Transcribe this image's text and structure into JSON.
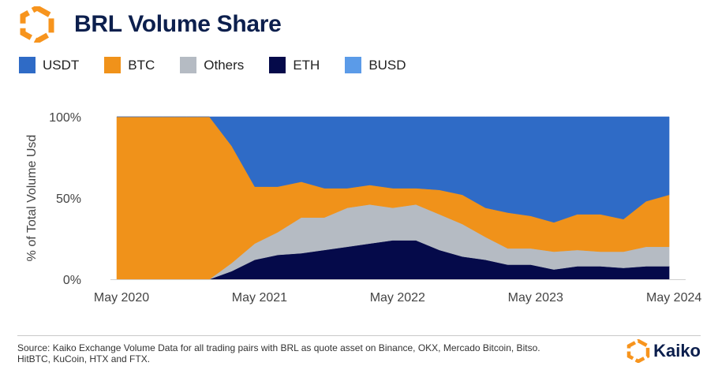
{
  "header": {
    "title": "BRL Volume Share"
  },
  "footer": {
    "source": "Source: Kaiko Exchange Volume Data for all trading pairs with BRL as quote asset on Binance, OKX, Mercado Bitcoin, Bitso. HitBTC, KuCoin, HTX and FTX.",
    "brand": "Kaiko"
  },
  "colors": {
    "USDT": "#2f6bc6",
    "BTC": "#f0921a",
    "Others": "#b5bbc3",
    "ETH": "#050a4a",
    "BUSD": "#5b9be8",
    "brand_orange": "#f7941d",
    "title_navy": "#0c1f4d"
  },
  "chart_data": {
    "type": "area",
    "stacked": true,
    "percent": true,
    "title": "",
    "xlabel": "",
    "ylabel": "% of Total Volume Usd",
    "ylim": [
      0,
      100
    ],
    "yticks": [
      "0%",
      "50%",
      "100%"
    ],
    "xticks": [
      "May 2020",
      "May 2021",
      "May 2022",
      "May 2023",
      "May 2024"
    ],
    "legend_position": "top-left",
    "grid": false,
    "x": [
      "2020-05",
      "2020-07",
      "2020-09",
      "2020-10",
      "2020-11",
      "2020-12",
      "2021-01",
      "2021-03",
      "2021-05",
      "2021-07",
      "2021-09",
      "2021-11",
      "2022-01",
      "2022-03",
      "2022-05",
      "2022-07",
      "2022-09",
      "2022-11",
      "2023-01",
      "2023-03",
      "2023-05",
      "2023-07",
      "2023-09",
      "2023-11",
      "2024-01",
      "2024-03",
      "2024-05"
    ],
    "series": [
      {
        "name": "BUSD",
        "values": [
          0,
          0,
          0,
          0,
          0,
          0,
          0,
          0,
          0,
          0,
          0,
          0,
          0,
          0,
          0,
          0,
          0,
          0,
          0,
          0,
          0,
          0,
          0,
          0,
          0,
          0,
          0
        ]
      },
      {
        "name": "ETH",
        "values": [
          0,
          0,
          0,
          0,
          0,
          0,
          0,
          5,
          12,
          15,
          16,
          18,
          20,
          22,
          24,
          24,
          18,
          14,
          12,
          9,
          9,
          6,
          8,
          8,
          7,
          8,
          8
        ]
      },
      {
        "name": "Others",
        "values": [
          0,
          0,
          0,
          0,
          0,
          0,
          0,
          5,
          10,
          14,
          22,
          20,
          24,
          24,
          20,
          22,
          22,
          20,
          14,
          10,
          10,
          11,
          10,
          9,
          10,
          12,
          12
        ]
      },
      {
        "name": "BTC",
        "values": [
          100,
          100,
          100,
          100,
          100,
          100,
          100,
          72,
          35,
          28,
          22,
          18,
          12,
          12,
          12,
          10,
          15,
          18,
          18,
          22,
          20,
          18,
          22,
          23,
          20,
          28,
          32
        ]
      },
      {
        "name": "USDT",
        "values": [
          0,
          0,
          0,
          0,
          0,
          0,
          0,
          18,
          43,
          43,
          40,
          44,
          44,
          42,
          44,
          44,
          45,
          48,
          56,
          59,
          61,
          65,
          60,
          60,
          63,
          52,
          48
        ]
      }
    ]
  }
}
